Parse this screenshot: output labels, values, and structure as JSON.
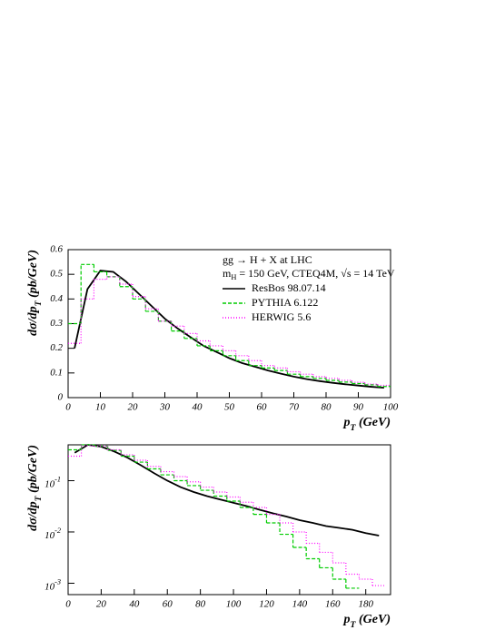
{
  "chart_data": [
    {
      "type": "line",
      "title": "gg → H + X at LHC",
      "subtitle": [
        "m",
        "H",
        " = 150 GeV, CTEQ4M, √s = 14 TeV"
      ],
      "xlabel": [
        "p",
        "T",
        " (GeV)"
      ],
      "ylabel": [
        "dσ/dp",
        "T",
        "  (pb/GeV)"
      ],
      "x": [
        2,
        6,
        10,
        14,
        18,
        22,
        26,
        30,
        34,
        38,
        42,
        46,
        50,
        54,
        58,
        62,
        66,
        70,
        74,
        78,
        82,
        86,
        90,
        94,
        98
      ],
      "xlim": [
        0,
        100
      ],
      "xticks": [
        0,
        10,
        20,
        30,
        40,
        50,
        60,
        70,
        80,
        90,
        100
      ],
      "ylim": [
        0,
        0.6
      ],
      "yticks": [
        0,
        0.1,
        0.2,
        0.3,
        0.4,
        0.5,
        0.6
      ],
      "series": [
        {
          "name": "ResBos 98.07.14",
          "color": "#000000",
          "style": "line",
          "dash": "none",
          "values": [
            0.2,
            0.44,
            0.515,
            0.51,
            0.47,
            0.42,
            0.37,
            0.32,
            0.28,
            0.245,
            0.21,
            0.185,
            0.16,
            0.14,
            0.125,
            0.11,
            0.097,
            0.085,
            0.075,
            0.067,
            0.06,
            0.054,
            0.049,
            0.044,
            0.04
          ]
        },
        {
          "name": "PYTHIA  6.122",
          "color": "#00cc00",
          "style": "step",
          "dash": "4 2",
          "values": [
            0.3,
            0.54,
            0.51,
            0.49,
            0.45,
            0.4,
            0.35,
            0.31,
            0.27,
            0.24,
            0.21,
            0.19,
            0.17,
            0.15,
            0.13,
            0.12,
            0.11,
            0.095,
            0.085,
            0.078,
            0.07,
            0.063,
            0.057,
            0.052,
            0.045
          ]
        },
        {
          "name": "HERWIG 5.6",
          "color": "#ff00ff",
          "style": "step",
          "dash": "1 2",
          "values": [
            0.22,
            0.4,
            0.48,
            0.49,
            0.46,
            0.41,
            0.36,
            0.31,
            0.29,
            0.26,
            0.23,
            0.21,
            0.19,
            0.17,
            0.15,
            0.13,
            0.12,
            0.105,
            0.095,
            0.085,
            0.078,
            0.07,
            0.062,
            0.055,
            0.05
          ]
        }
      ]
    },
    {
      "type": "line",
      "ylog": true,
      "xlabel": [
        "p",
        "T",
        " (GeV)"
      ],
      "ylabel": [
        "dσ/dp",
        "T",
        "  (pb/GeV)"
      ],
      "x": [
        4,
        12,
        20,
        28,
        36,
        44,
        52,
        60,
        68,
        76,
        84,
        92,
        100,
        108,
        116,
        124,
        132,
        140,
        148,
        156,
        164,
        172,
        180,
        188
      ],
      "xlim": [
        0,
        195
      ],
      "xticks": [
        0,
        20,
        40,
        60,
        80,
        100,
        120,
        140,
        160,
        180
      ],
      "ylim": [
        0.0006,
        0.5
      ],
      "yticks": [
        {
          "value": 0.1,
          "label": "10",
          "exponent": "-1"
        },
        {
          "value": 0.01,
          "label": "10",
          "exponent": "-2"
        },
        {
          "value": 0.001,
          "label": "10",
          "exponent": "-3"
        }
      ],
      "series": [
        {
          "color": "#000000",
          "style": "line",
          "dash": "none",
          "values": [
            0.35,
            0.5,
            0.46,
            0.37,
            0.28,
            0.2,
            0.14,
            0.1,
            0.075,
            0.06,
            0.05,
            0.043,
            0.037,
            0.032,
            0.027,
            0.023,
            0.02,
            0.017,
            0.015,
            0.013,
            0.012,
            0.011,
            0.0095,
            0.0085
          ]
        },
        {
          "color": "#00cc00",
          "style": "step",
          "dash": "4 2",
          "values": [
            0.4,
            0.5,
            0.47,
            0.39,
            0.3,
            0.23,
            0.17,
            0.13,
            0.1,
            0.08,
            0.065,
            0.05,
            0.04,
            0.03,
            0.022,
            0.015,
            0.009,
            0.005,
            0.003,
            0.002,
            0.0012,
            0.0008,
            null,
            null
          ]
        },
        {
          "color": "#ff00ff",
          "style": "step",
          "dash": "1 2",
          "values": [
            0.3,
            0.48,
            0.47,
            0.4,
            0.32,
            0.25,
            0.19,
            0.15,
            0.12,
            0.095,
            0.075,
            0.06,
            0.048,
            0.038,
            0.03,
            0.022,
            0.015,
            0.01,
            0.006,
            0.004,
            0.0025,
            0.0015,
            0.0012,
            0.0009
          ]
        }
      ]
    }
  ]
}
